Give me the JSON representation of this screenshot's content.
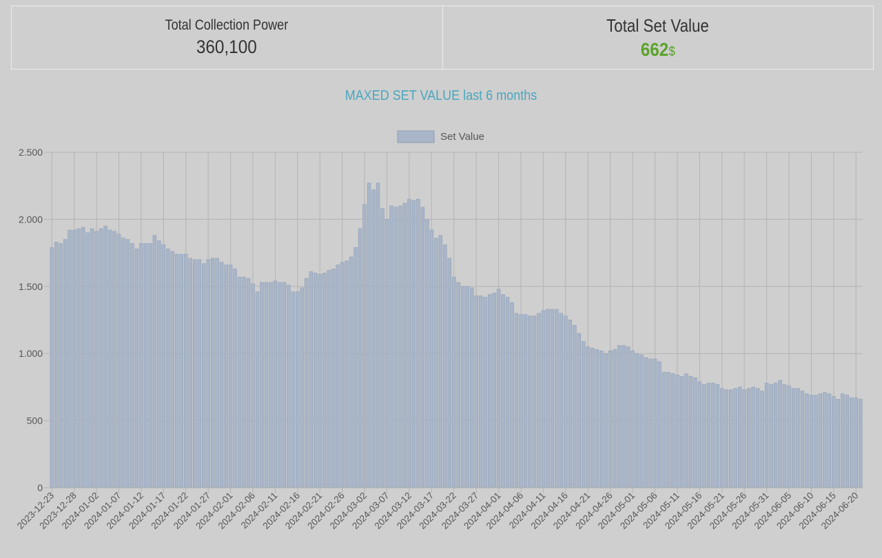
{
  "stats": {
    "collection_power_label": "Total Collection Power",
    "collection_power_value": "360,100",
    "set_value_label": "Total Set Value",
    "set_value_amount": "662",
    "set_value_unit": "$"
  },
  "chart_data": {
    "type": "bar",
    "title": "MAXED SET VALUE last 6 months",
    "xlabel": "",
    "ylabel": "",
    "ylim": [
      0,
      2500
    ],
    "yticks": [
      0,
      500,
      1000,
      1500,
      2000,
      2500
    ],
    "ytick_labels": [
      "0",
      "500",
      "1.000",
      "1.500",
      "2.000",
      "2.500"
    ],
    "grid": true,
    "legend_position": "top-center",
    "start_date": "2023-12-23",
    "x_tick_labels": [
      "2023-12-23",
      "2023-12-28",
      "2024-01-02",
      "2024-01-07",
      "2024-01-12",
      "2024-01-17",
      "2024-01-22",
      "2024-01-27",
      "2024-02-01",
      "2024-02-06",
      "2024-02-11",
      "2024-02-16",
      "2024-02-21",
      "2024-02-26",
      "2024-03-02",
      "2024-03-07",
      "2024-03-12",
      "2024-03-17",
      "2024-03-22",
      "2024-03-27",
      "2024-04-01",
      "2024-04-06",
      "2024-04-11",
      "2024-04-16",
      "2024-04-21",
      "2024-04-26",
      "2024-05-01",
      "2024-05-06",
      "2024-05-11",
      "2024-05-16",
      "2024-05-21",
      "2024-05-26",
      "2024-05-31",
      "2024-06-05",
      "2024-06-10",
      "2024-06-15",
      "2024-06-20"
    ],
    "series": [
      {
        "name": "Set Value",
        "color": "#a9b6c9",
        "border": "#8e9db4",
        "values": [
          1790,
          1830,
          1820,
          1850,
          1920,
          1920,
          1930,
          1940,
          1900,
          1930,
          1910,
          1930,
          1950,
          1920,
          1910,
          1890,
          1860,
          1850,
          1820,
          1780,
          1820,
          1820,
          1820,
          1880,
          1840,
          1810,
          1780,
          1760,
          1740,
          1740,
          1740,
          1710,
          1700,
          1700,
          1670,
          1700,
          1710,
          1710,
          1680,
          1660,
          1660,
          1630,
          1570,
          1570,
          1560,
          1520,
          1460,
          1530,
          1530,
          1530,
          1540,
          1530,
          1530,
          1510,
          1460,
          1460,
          1490,
          1560,
          1610,
          1600,
          1590,
          1600,
          1620,
          1630,
          1660,
          1680,
          1690,
          1720,
          1790,
          1930,
          2110,
          2270,
          2220,
          2270,
          2080,
          2000,
          2100,
          2090,
          2100,
          2120,
          2150,
          2140,
          2150,
          2090,
          2000,
          1920,
          1860,
          1880,
          1810,
          1710,
          1570,
          1530,
          1500,
          1500,
          1490,
          1430,
          1430,
          1420,
          1440,
          1450,
          1480,
          1440,
          1420,
          1380,
          1300,
          1290,
          1290,
          1280,
          1280,
          1300,
          1320,
          1330,
          1330,
          1330,
          1300,
          1280,
          1250,
          1210,
          1150,
          1090,
          1050,
          1040,
          1030,
          1020,
          1000,
          1020,
          1030,
          1060,
          1060,
          1050,
          1020,
          1000,
          990,
          970,
          960,
          960,
          940,
          860,
          860,
          850,
          840,
          830,
          850,
          830,
          820,
          790,
          770,
          780,
          780,
          770,
          740,
          730,
          730,
          740,
          750,
          730,
          740,
          750,
          740,
          720,
          780,
          770,
          780,
          800,
          770,
          760,
          740,
          740,
          720,
          700,
          690,
          690,
          700,
          710,
          700,
          680,
          660,
          700,
          690,
          670,
          670,
          660
        ]
      }
    ]
  }
}
